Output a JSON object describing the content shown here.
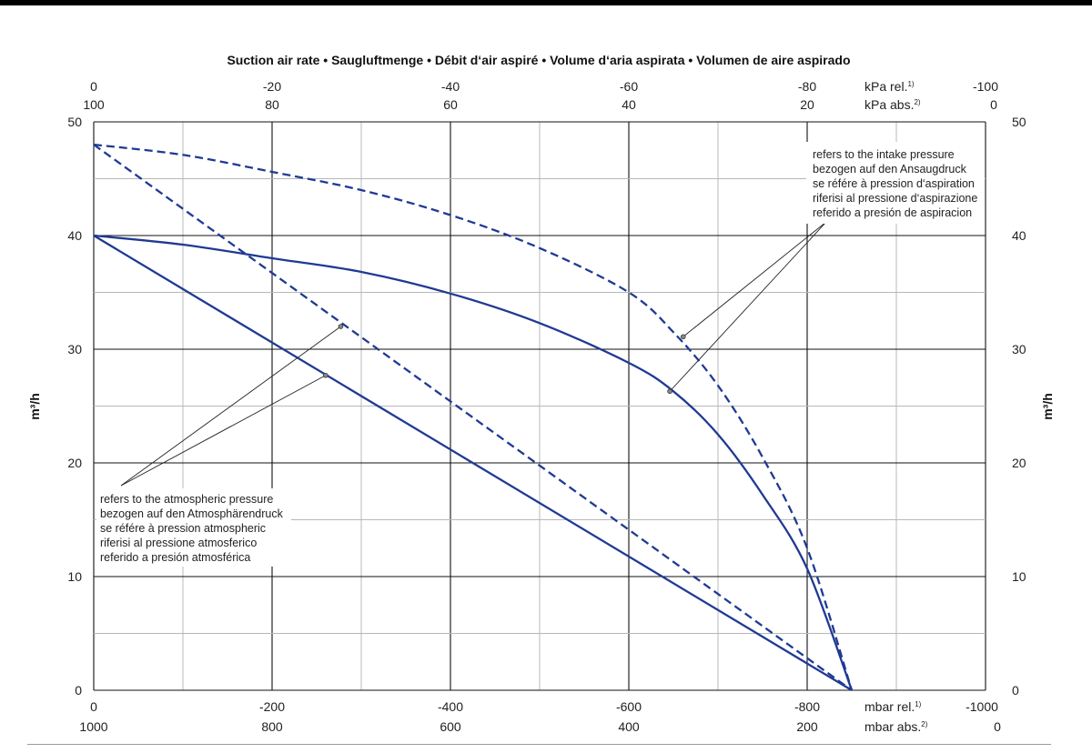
{
  "colors": {
    "curve": "#1f3a93",
    "grid_major": "#111111",
    "grid_minor": "#b8b8b8",
    "leader": "#222222"
  },
  "chart_data": {
    "type": "line",
    "title": "Suction air rate  •  Saugluftmenge  •  Débit d‘air aspiré  •  Volume d‘aria aspirata  •  Volumen de aire aspirado",
    "ylabel_left": "m³/h",
    "ylabel_right": "m³/h",
    "xlim": [
      0,
      -1000
    ],
    "ylim": [
      0,
      50
    ],
    "grid": true,
    "y_ticks": [
      "0",
      "10",
      "20",
      "30",
      "40",
      "50"
    ],
    "top_axis": {
      "rel_ticks": [
        "0",
        "-20",
        "-40",
        "-60",
        "-80",
        "",
        "-100"
      ],
      "abs_ticks": [
        "100",
        "80",
        "60",
        "40",
        "20",
        "",
        "0"
      ],
      "rel_unit": "kPa rel.",
      "rel_unit_sup": "1)",
      "abs_unit": "kPa abs.",
      "abs_unit_sup": "2)"
    },
    "bottom_axis": {
      "rel_ticks": [
        "0",
        "-200",
        "-400",
        "-600",
        "-800",
        "",
        "-1000"
      ],
      "abs_ticks": [
        "1000",
        "800",
        "600",
        "400",
        "200",
        "",
        "0"
      ],
      "rel_unit": "mbar rel.",
      "rel_unit_sup": "1)",
      "abs_unit": "mbar abs.",
      "abs_unit_sup": "2)"
    },
    "series": [
      {
        "style": "solid",
        "group": "atmospheric",
        "x": [
          0,
          -850
        ],
        "y": [
          40,
          0
        ]
      },
      {
        "style": "dashed",
        "group": "atmospheric",
        "x": [
          0,
          -850
        ],
        "y": [
          48,
          0
        ]
      },
      {
        "style": "solid",
        "group": "intake",
        "x": [
          0,
          -100,
          -200,
          -300,
          -400,
          -500,
          -600,
          -650,
          -700,
          -750,
          -800,
          -850
        ],
        "y": [
          40,
          39.2,
          38,
          36.8,
          34.9,
          32.3,
          28.8,
          26.3,
          22.5,
          17.2,
          10.7,
          0
        ]
      },
      {
        "style": "dashed",
        "group": "intake",
        "x": [
          0,
          -100,
          -200,
          -300,
          -400,
          -500,
          -600,
          -650,
          -700,
          -750,
          -800,
          -850
        ],
        "y": [
          48,
          47.1,
          45.6,
          44,
          41.8,
          38.9,
          35,
          31.5,
          26.8,
          20.5,
          12.5,
          0
        ]
      }
    ],
    "markers": [
      {
        "x": -260,
        "y": 27.7
      },
      {
        "x": -277,
        "y": 32
      },
      {
        "x": -646,
        "y": 26.3
      },
      {
        "x": -661,
        "y": 31.1
      }
    ],
    "annotations": [
      {
        "group": "intake",
        "lines": [
          "refers to the intake pressure",
          "bezogen auf den Ansaugdruck",
          "se référe à pression d‘aspiration",
          "riferisi al pressione d‘aspirazione",
          "referido a presión de aspiracion"
        ]
      },
      {
        "group": "atmospheric",
        "lines": [
          "refers to the atmospheric pressure",
          "bezogen auf den Atmosphärendruck",
          "se référe à pression atmospheric",
          "riferisi al pressione atmosferico",
          "referido a presión atmosférica"
        ]
      }
    ]
  }
}
